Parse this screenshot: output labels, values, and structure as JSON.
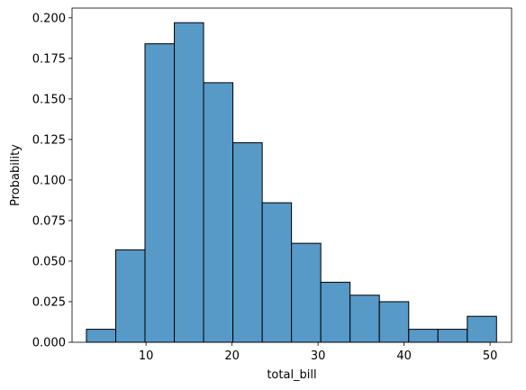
{
  "chart_data": {
    "type": "bar",
    "histogram": true,
    "title": "",
    "xlabel": "total_bill",
    "ylabel": "Probability",
    "xlim": [
      1.4,
      52.5
    ],
    "ylim": [
      0,
      0.206
    ],
    "xticks": [
      10,
      20,
      30,
      40,
      50
    ],
    "xtick_labels": [
      "10",
      "20",
      "30",
      "40",
      "50"
    ],
    "yticks": [
      0,
      0.025,
      0.05,
      0.075,
      0.1,
      0.125,
      0.15,
      0.175,
      0.2
    ],
    "ytick_labels": [
      "0.000",
      "0.025",
      "0.050",
      "0.075",
      "0.100",
      "0.125",
      "0.150",
      "0.175",
      "0.200"
    ],
    "bin_edges": [
      3.07,
      6.48,
      9.88,
      13.29,
      16.69,
      20.1,
      23.51,
      26.91,
      30.32,
      33.72,
      37.13,
      40.54,
      43.94,
      47.35,
      50.75
    ],
    "values": [
      0.008,
      0.057,
      0.184,
      0.197,
      0.16,
      0.123,
      0.086,
      0.061,
      0.037,
      0.029,
      0.025,
      0.008,
      0.008,
      0.016
    ],
    "grid": false,
    "colors": {
      "bar_fill": "#5799c7",
      "bar_edge": "#000000"
    }
  }
}
